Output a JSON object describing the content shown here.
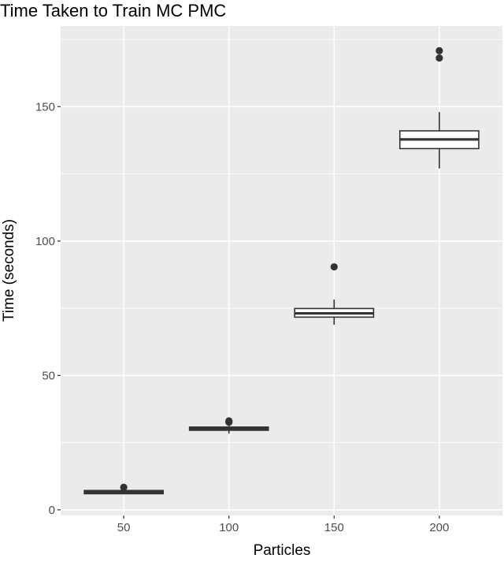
{
  "chart_data": {
    "type": "boxplot",
    "title": "Time Taken to Train MC PMC",
    "xlabel": "Particles",
    "ylabel": "Time (seconds)",
    "categories": [
      "50",
      "100",
      "150",
      "200"
    ],
    "ylim": [
      -2.1,
      180
    ],
    "yticks": [
      0,
      50,
      100,
      150
    ],
    "yminor": [
      25,
      75,
      125,
      175
    ],
    "grid": true,
    "theme": "ggplot2 gray",
    "colors": {
      "panel": "#EBEBEB",
      "grid": "#FFFFFF",
      "box_line": "#333333",
      "box_fill": "#FFFFFF",
      "text": "#4D4D4D"
    },
    "boxes": [
      {
        "category": "50",
        "lower_whisker": 5.8,
        "q1": 6.0,
        "median": 6.6,
        "q3": 7.2,
        "upper_whisker": 7.5,
        "outliers": [
          8.4
        ]
      },
      {
        "category": "100",
        "lower_whisker": 28.4,
        "q1": 29.6,
        "median": 30.2,
        "q3": 30.8,
        "upper_whisker": 31.3,
        "outliers": [
          32.6,
          33.1
        ]
      },
      {
        "category": "150",
        "lower_whisker": 68.9,
        "q1": 71.7,
        "median": 73.1,
        "q3": 74.9,
        "upper_whisker": 78.2,
        "outliers": [
          90.4
        ]
      },
      {
        "category": "200",
        "lower_whisker": 127.0,
        "q1": 134.4,
        "median": 137.8,
        "q3": 141.0,
        "upper_whisker": 148.0,
        "outliers": [
          168.1,
          170.8
        ]
      }
    ]
  }
}
